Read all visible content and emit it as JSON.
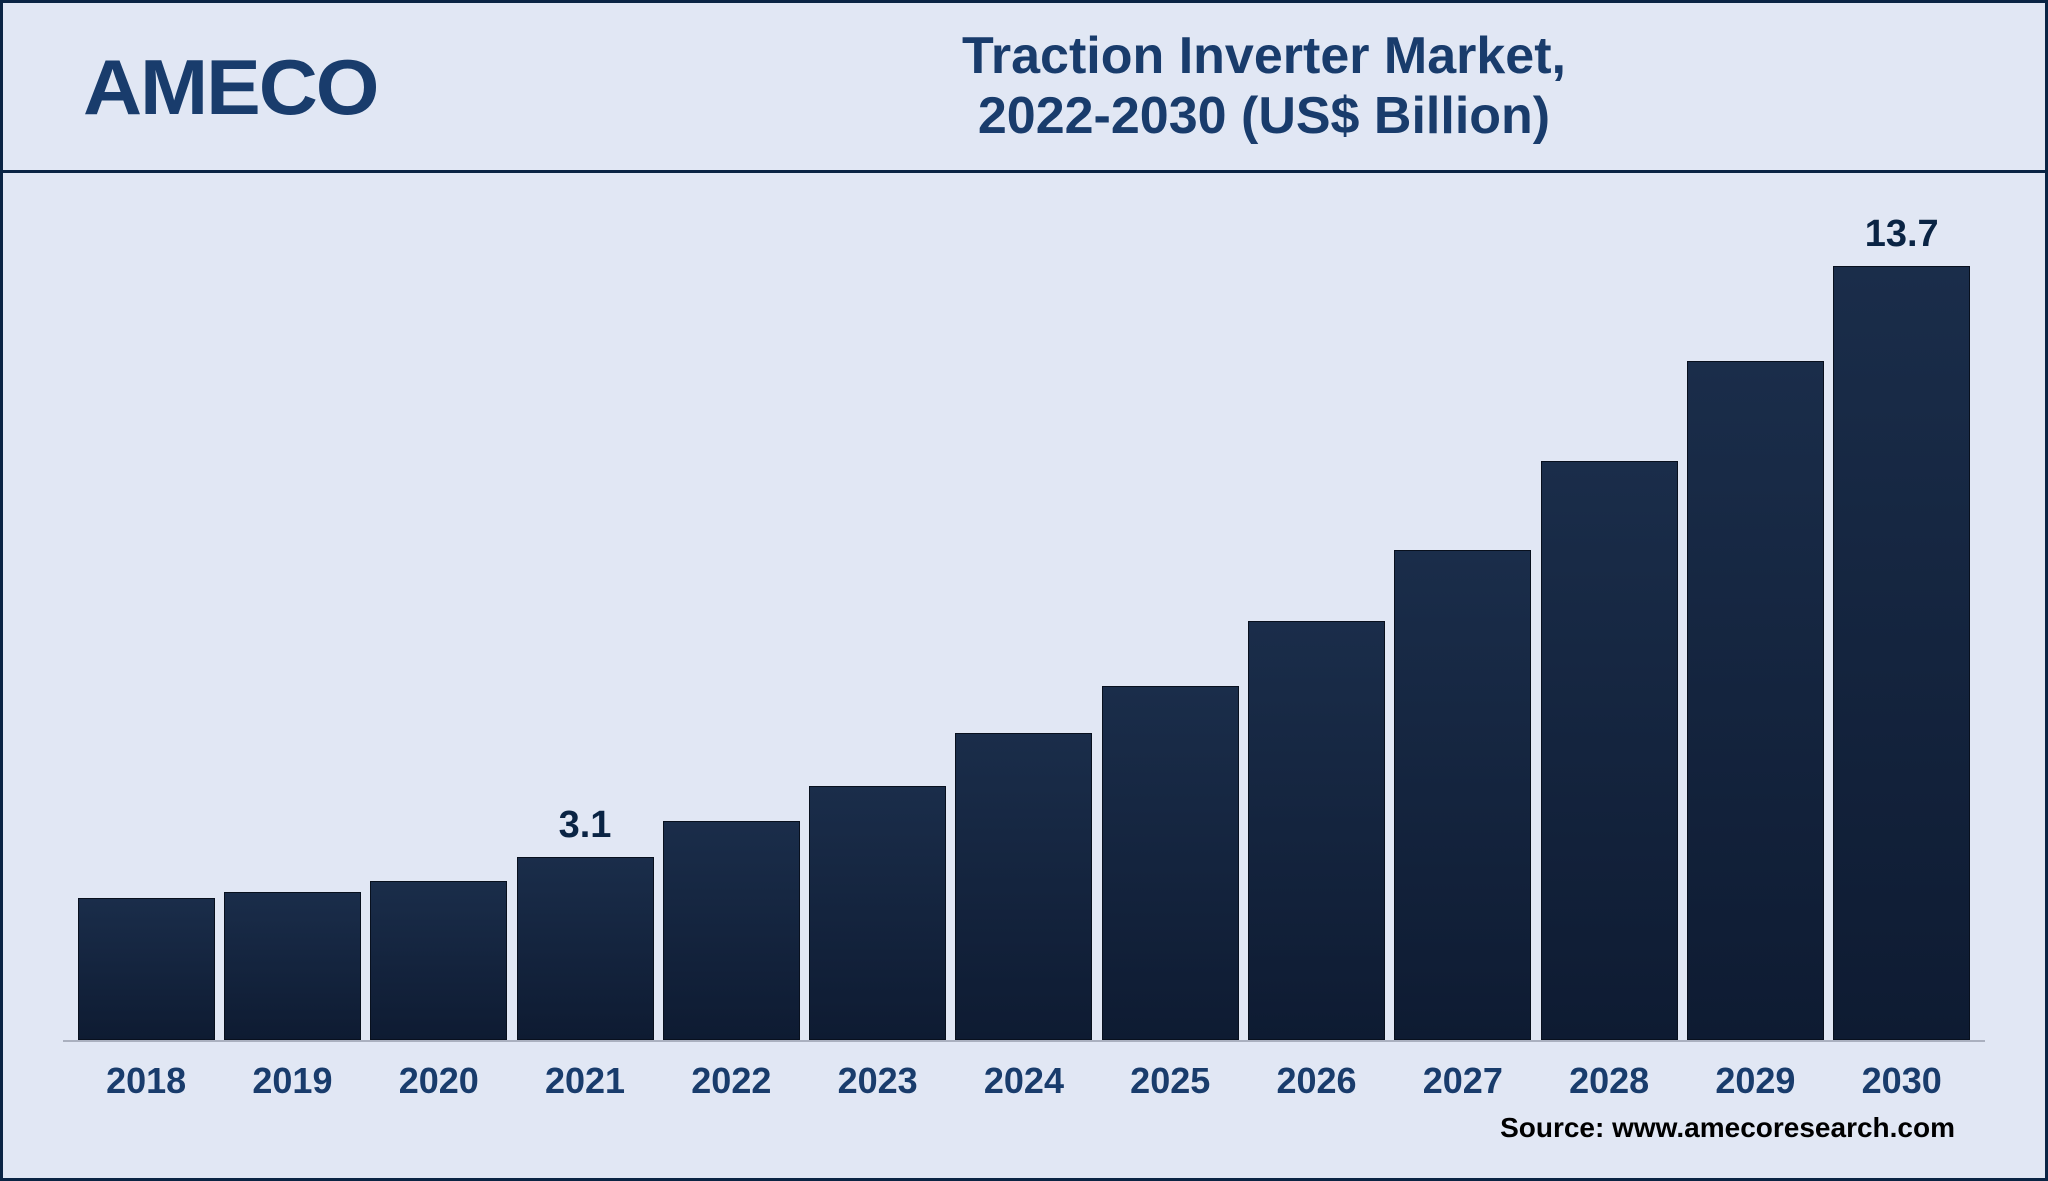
{
  "logo_text": "AMECO",
  "title": {
    "line1": "Traction Inverter Market,",
    "line2": "2022-2030 (US$ Billion)"
  },
  "chart": {
    "type": "bar",
    "categories": [
      "2018",
      "2019",
      "2020",
      "2021",
      "2022",
      "2023",
      "2024",
      "2025",
      "2026",
      "2027",
      "2028",
      "2029",
      "2030"
    ],
    "values": [
      2.4,
      2.5,
      2.7,
      3.1,
      3.7,
      4.3,
      5.2,
      6.0,
      7.1,
      8.3,
      9.8,
      11.5,
      13.7
    ],
    "value_labels": [
      "",
      "",
      "",
      "3.1",
      "",
      "",
      "",
      "",
      "",
      "",
      "",
      "",
      "13.7"
    ],
    "ylim": [
      0,
      14
    ],
    "bar_color_top": "#1a2d4a",
    "bar_color_bottom": "#0e1b32",
    "bar_border": "#08101e",
    "background_color": "#e1e7f4",
    "frame_color": "#0a2444",
    "baseline_color": "#aab0bf",
    "title_color": "#193c6c",
    "title_fontsize": 52,
    "xlabel_fontsize": 36,
    "value_label_fontsize": 38,
    "bar_width_pct": 7.2
  },
  "source_text": "Source: www.amecoresearch.com"
}
